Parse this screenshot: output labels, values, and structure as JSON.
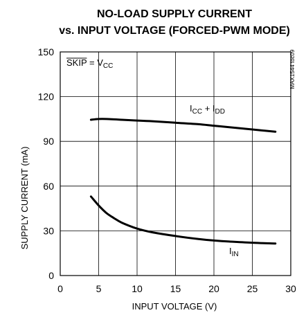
{
  "chart_data": {
    "type": "line",
    "title_line1": "NO-LOAD SUPPLY CURRENT",
    "title_line2": "vs. INPUT VOLTAGE (FORCED-PWM MODE)",
    "xlabel": "INPUT VOLTAGE (V)",
    "ylabel": "SUPPLY CURRENT (mA)",
    "xlim": [
      0,
      30
    ],
    "ylim": [
      0,
      150
    ],
    "x_ticks": [
      0,
      5,
      10,
      15,
      20,
      25,
      30
    ],
    "y_ticks": [
      0,
      30,
      60,
      90,
      120,
      150
    ],
    "grid": true,
    "condition_label": {
      "overline": "SKIP",
      "rest": " = V",
      "sub": "CC"
    },
    "figure_code": "MAX1544 toc09",
    "series": [
      {
        "label": {
          "a": "I",
          "a_sub": "CC",
          "mid": " + I",
          "b_sub": "DD"
        },
        "x": [
          4,
          5,
          6,
          8,
          10,
          12,
          15,
          18,
          20,
          22,
          25,
          28
        ],
        "y": [
          104.5,
          105,
          105,
          104.5,
          104,
          103.5,
          102.5,
          101.5,
          100.5,
          99.5,
          98,
          96.5
        ]
      },
      {
        "label": {
          "a": "I",
          "a_sub": "IN"
        },
        "x": [
          4,
          5,
          6,
          7,
          8,
          10,
          12,
          15,
          18,
          20,
          22,
          25,
          28
        ],
        "y": [
          53,
          47,
          42,
          38.5,
          35.5,
          31.5,
          29,
          26.5,
          24.5,
          23.5,
          22.8,
          22,
          21.5
        ]
      }
    ],
    "colors": {
      "line": "#000000",
      "grid": "#000000"
    }
  }
}
